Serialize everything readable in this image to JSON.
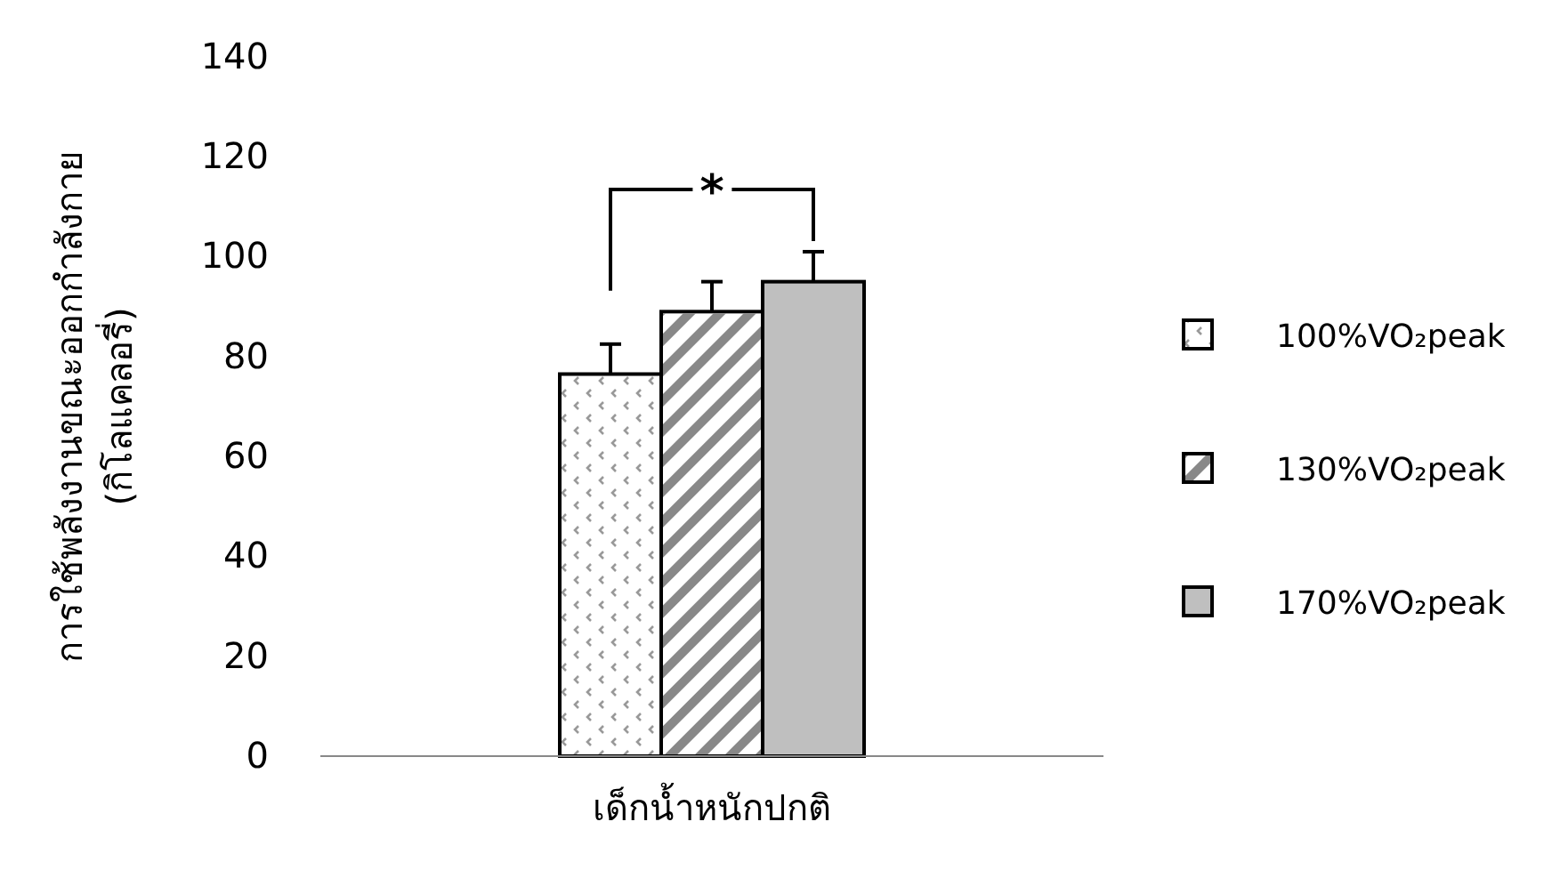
{
  "chart_data": {
    "type": "bar",
    "categories": [
      "เด็กน้ำหนักปกติ"
    ],
    "ylabel": "การใช้พลังงานขณะออกกำลังกาย\n(กิโลแคลอรี่)",
    "series": [
      {
        "name": "100%VO₂peak",
        "color": "#ffffff",
        "values": [
          76.5
        ],
        "errors": [
          6
        ]
      },
      {
        "name": "130%VO₂peak",
        "color": "#ffffff",
        "values": [
          89
        ],
        "errors": [
          6
        ]
      },
      {
        "name": "170%VO₂peak",
        "color": "#bfbfbf",
        "values": [
          95
        ],
        "errors": [
          6
        ]
      }
    ],
    "ylim": [
      0,
      140
    ],
    "yticks": [
      0,
      20,
      40,
      60,
      80,
      100,
      120,
      140
    ],
    "annotations": [
      "*"
    ],
    "legend": "right",
    "grid": false
  }
}
